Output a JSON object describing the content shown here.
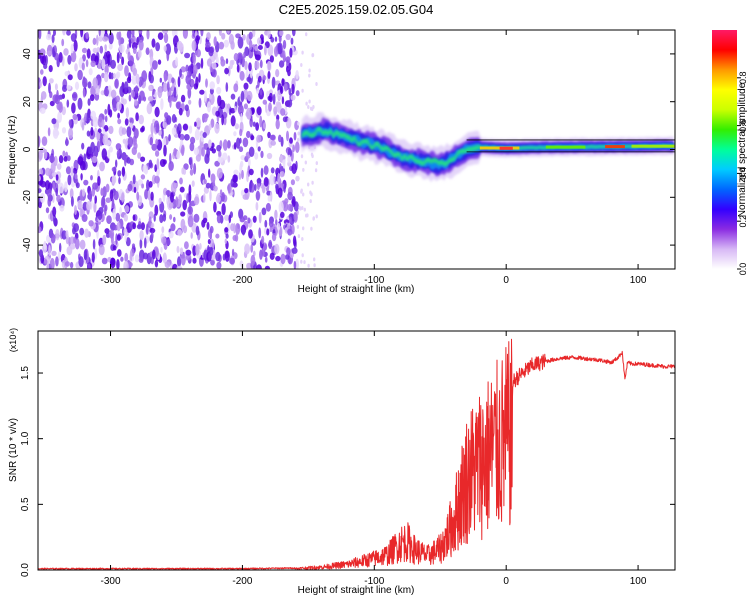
{
  "figure": {
    "title": "C2E5.2025.159.02.05.G04"
  },
  "chart_data": [
    {
      "type": "heatmap",
      "xlabel": "Height of straight line (km)",
      "ylabel": "Frequency (Hz)",
      "xlim": [
        -355,
        128
      ],
      "ylim": [
        -50,
        50
      ],
      "xticks": [
        -300,
        -200,
        -100,
        0,
        100
      ],
      "yticks": [
        -40,
        -20,
        0,
        20,
        40
      ],
      "grid": false,
      "colorbar": {
        "label": "Normalized spectral amplitude",
        "range": [
          0,
          1
        ],
        "ticks": [
          0.0,
          0.2,
          0.4,
          0.6,
          0.8
        ],
        "colors": [
          "#ffffff",
          "#d7b8f5",
          "#8a2be2",
          "#3300ff",
          "#0066ff",
          "#00ccff",
          "#00ff99",
          "#33ee00",
          "#ccff00",
          "#ffff00",
          "#ff9900",
          "#ff0000",
          "#ff1a66"
        ]
      },
      "noise_region": {
        "x": [
          -355,
          -158
        ],
        "y": [
          -50,
          50
        ]
      },
      "ridge": [
        {
          "x": -155,
          "f": 6
        },
        {
          "x": -140,
          "f": 8
        },
        {
          "x": -125,
          "f": 6
        },
        {
          "x": -110,
          "f": 3
        },
        {
          "x": -95,
          "f": 1
        },
        {
          "x": -80,
          "f": -3
        },
        {
          "x": -65,
          "f": -5
        },
        {
          "x": -50,
          "f": -6
        },
        {
          "x": -40,
          "f": -4
        },
        {
          "x": -30,
          "f": 0
        },
        {
          "x": -20,
          "f": 1
        },
        {
          "x": 0,
          "f": 0.5
        },
        {
          "x": 40,
          "f": 1
        },
        {
          "x": 80,
          "f": 1.2
        },
        {
          "x": 128,
          "f": 1.5
        }
      ],
      "reference_lines": {
        "y": [
          4,
          -1
        ]
      }
    },
    {
      "type": "line",
      "xlabel": "Height of straight line (km)",
      "ylabel": "SNR (10 * v/v)",
      "y_multiplier": "(x10⁴)",
      "xlim": [
        -355,
        128
      ],
      "ylim": [
        0,
        1.82
      ],
      "xticks": [
        -300,
        -200,
        -100,
        0,
        100
      ],
      "yticks": [
        0.0,
        0.5,
        1.0,
        1.5
      ],
      "color": "#e8282a",
      "series": [
        {
          "x": [
            -355,
            -300,
            -250,
            -200,
            -160,
            -140,
            -120,
            -100,
            -90,
            -80,
            -75,
            -70,
            -60,
            -50,
            -45,
            -40,
            -35,
            -30,
            -25,
            -20,
            -15,
            -10,
            -5,
            0,
            10,
            20,
            30,
            40,
            50,
            60,
            70,
            80,
            85,
            88,
            90,
            92,
            95,
            100,
            110,
            120,
            128
          ],
          "y": [
            0.01,
            0.01,
            0.01,
            0.01,
            0.015,
            0.03,
            0.06,
            0.12,
            0.16,
            0.28,
            0.3,
            0.22,
            0.15,
            0.22,
            0.35,
            0.5,
            0.75,
            0.95,
            1.05,
            1.12,
            1.18,
            1.25,
            1.3,
            1.38,
            1.48,
            1.56,
            1.59,
            1.61,
            1.62,
            1.61,
            1.6,
            1.58,
            1.62,
            1.66,
            1.45,
            1.58,
            1.57,
            1.57,
            1.56,
            1.55,
            1.55
          ]
        }
      ]
    }
  ]
}
